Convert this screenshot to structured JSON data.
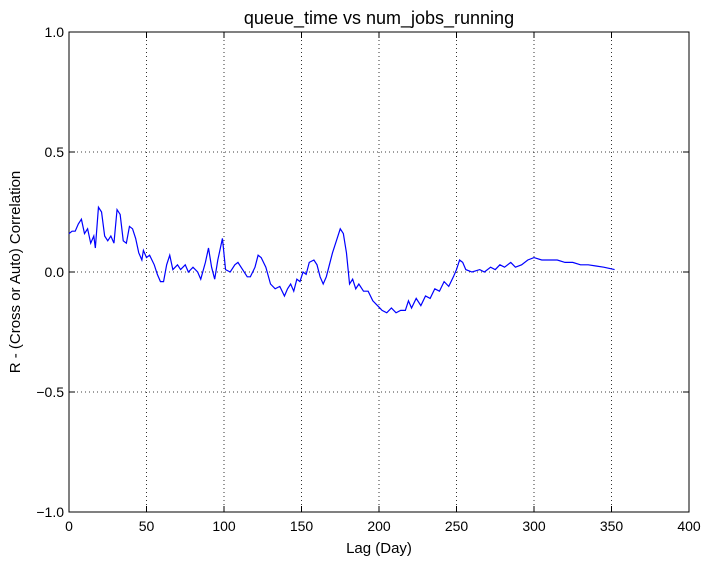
{
  "chart_data": {
    "type": "line",
    "title": "queue_time vs num_jobs_running",
    "xlabel": "Lag (Day)",
    "ylabel": "R - (Cross or Auto) Correlation",
    "color": "#0000ff",
    "grid": true,
    "xlim": [
      0,
      400
    ],
    "ylim": [
      -1,
      1
    ],
    "xticks": [
      0,
      50,
      100,
      150,
      200,
      250,
      300,
      350,
      400
    ],
    "yticks": [
      {
        "value": -1,
        "label": "−1.0"
      },
      {
        "value": -0.5,
        "label": "−0.5"
      },
      {
        "value": 0,
        "label": "0.0"
      },
      {
        "value": 0.5,
        "label": "0.5"
      },
      {
        "value": 1,
        "label": "1.0"
      }
    ],
    "x": [
      0,
      2,
      4,
      6,
      8,
      10,
      12,
      14,
      16,
      17,
      19,
      21,
      23,
      25,
      27,
      29,
      31,
      33,
      35,
      37,
      39,
      41,
      43,
      45,
      47,
      48,
      50,
      52,
      55,
      57,
      59,
      61,
      63,
      65,
      67,
      70,
      72,
      75,
      77,
      80,
      83,
      85,
      88,
      90,
      92,
      94,
      96,
      99,
      101,
      104,
      107,
      109,
      112,
      115,
      117,
      120,
      122,
      124,
      127,
      130,
      133,
      136,
      139,
      141,
      143,
      145,
      147,
      149,
      151,
      153,
      155,
      158,
      160,
      162,
      164,
      166,
      168,
      170,
      173,
      175,
      177,
      179,
      181,
      183,
      185,
      187,
      190,
      193,
      196,
      199,
      202,
      205,
      208,
      211,
      214,
      217,
      219,
      221,
      224,
      227,
      230,
      233,
      236,
      239,
      242,
      245,
      248,
      250,
      252,
      254,
      256,
      260,
      265,
      268,
      272,
      275,
      278,
      281,
      285,
      288,
      292,
      296,
      300,
      305,
      310,
      315,
      320,
      325,
      330,
      335,
      340,
      345,
      352
    ],
    "values": [
      0.16,
      0.17,
      0.17,
      0.2,
      0.22,
      0.16,
      0.18,
      0.12,
      0.15,
      0.1,
      0.27,
      0.25,
      0.15,
      0.13,
      0.15,
      0.12,
      0.26,
      0.24,
      0.13,
      0.12,
      0.19,
      0.18,
      0.14,
      0.08,
      0.05,
      0.09,
      0.06,
      0.07,
      0.03,
      -0.01,
      -0.04,
      -0.04,
      0.03,
      0.07,
      0.01,
      0.03,
      0.01,
      0.03,
      0,
      0.02,
      0,
      -0.03,
      0.04,
      0.1,
      0.02,
      -0.03,
      0.05,
      0.14,
      0.01,
      0,
      0.03,
      0.04,
      0.01,
      -0.02,
      -0.02,
      0.02,
      0.07,
      0.06,
      0.02,
      -0.05,
      -0.07,
      -0.06,
      -0.1,
      -0.07,
      -0.05,
      -0.08,
      -0.03,
      -0.04,
      0,
      -0.01,
      0.04,
      0.05,
      0.03,
      -0.02,
      -0.05,
      -0.02,
      0.03,
      0.08,
      0.14,
      0.18,
      0.16,
      0.08,
      -0.05,
      -0.03,
      -0.07,
      -0.05,
      -0.08,
      -0.08,
      -0.12,
      -0.14,
      -0.16,
      -0.17,
      -0.15,
      -0.17,
      -0.16,
      -0.16,
      -0.12,
      -0.15,
      -0.11,
      -0.14,
      -0.1,
      -0.11,
      -0.07,
      -0.08,
      -0.04,
      -0.06,
      -0.02,
      0.01,
      0.05,
      0.04,
      0.01,
      0,
      0.01,
      0,
      0.02,
      0.01,
      0.03,
      0.02,
      0.04,
      0.02,
      0.03,
      0.05,
      0.06,
      0.05,
      0.05,
      0.05,
      0.04,
      0.04,
      0.03,
      0.03,
      0.025,
      0.02,
      0.01
    ]
  }
}
